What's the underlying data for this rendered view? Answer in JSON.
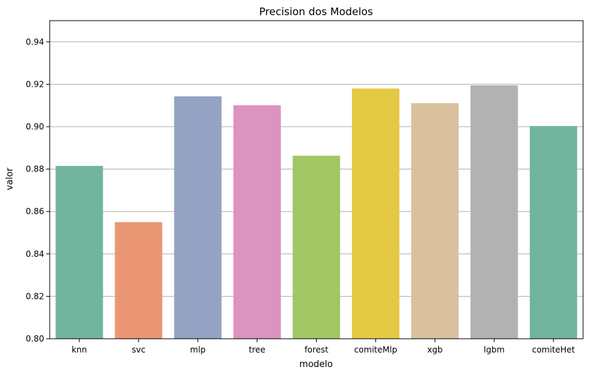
{
  "chart_data": {
    "type": "bar",
    "title": "Precision dos Modelos",
    "xlabel": "modelo",
    "ylabel": "valor",
    "categories": [
      "knn",
      "svc",
      "mlp",
      "tree",
      "forest",
      "comiteMlp",
      "xgb",
      "lgbm",
      "comiteHet"
    ],
    "values": [
      0.8815,
      0.855,
      0.9143,
      0.9101,
      0.8863,
      0.918,
      0.9111,
      0.9195,
      0.9003
    ],
    "ylim": [
      0.8,
      0.95
    ],
    "yticks": [
      "0.80",
      "0.82",
      "0.84",
      "0.86",
      "0.88",
      "0.90",
      "0.92",
      "0.94"
    ],
    "grid": "horizontal",
    "colors": [
      "#72b59f",
      "#ea9674",
      "#94a3c3",
      "#db93bf",
      "#a2c663",
      "#e4c944",
      "#d9c19d",
      "#b2b2b2",
      "#72b59f"
    ]
  }
}
